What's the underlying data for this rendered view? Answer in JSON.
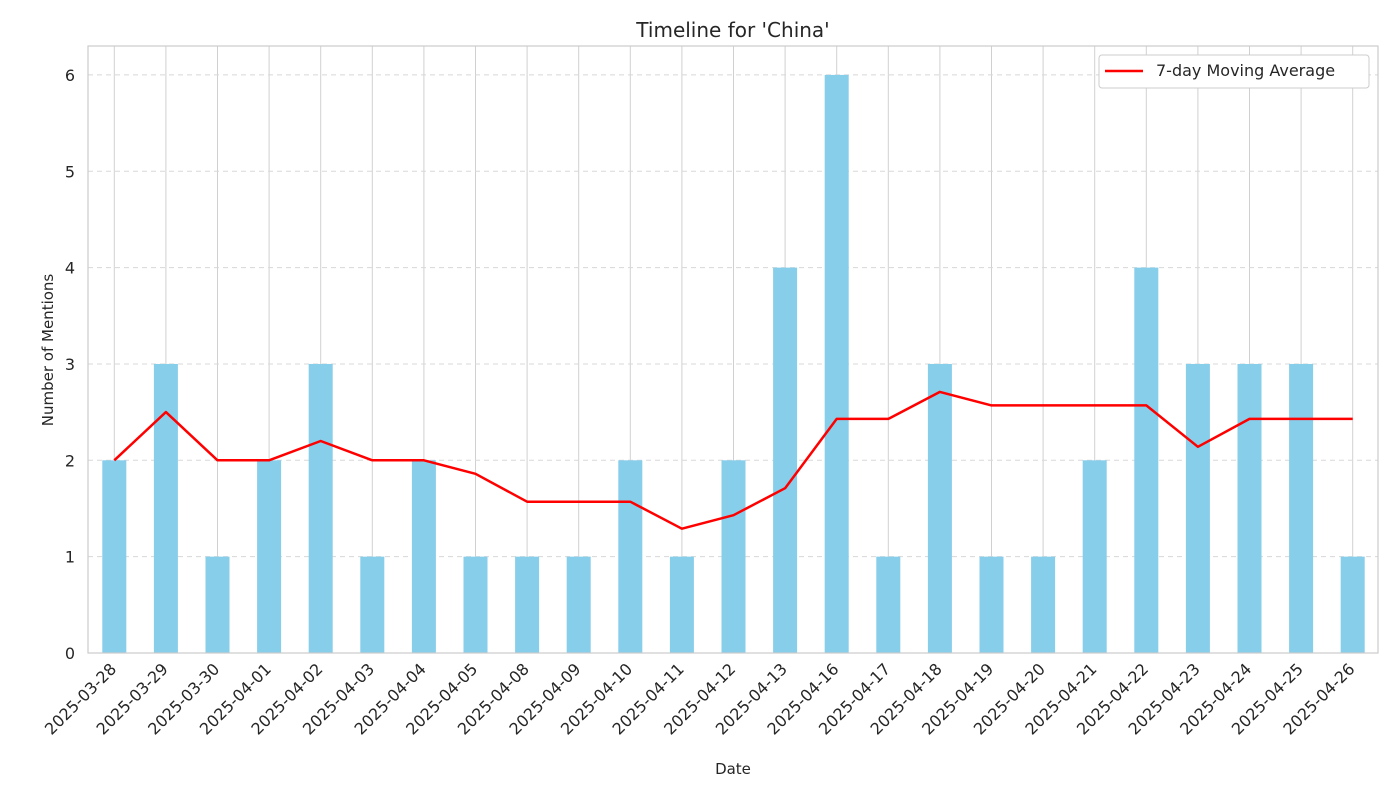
{
  "chart_data": {
    "type": "bar",
    "title": "Timeline for 'China'",
    "xlabel": "Date",
    "ylabel": "Number of Mentions",
    "ylim": [
      0,
      6.3
    ],
    "yticks": [
      0,
      1,
      2,
      3,
      4,
      5,
      6
    ],
    "grid": true,
    "legend_position": "top-right",
    "categories": [
      "2025-03-28",
      "2025-03-29",
      "2025-03-30",
      "2025-04-01",
      "2025-04-02",
      "2025-04-03",
      "2025-04-04",
      "2025-04-05",
      "2025-04-08",
      "2025-04-09",
      "2025-04-10",
      "2025-04-11",
      "2025-04-12",
      "2025-04-13",
      "2025-04-16",
      "2025-04-17",
      "2025-04-18",
      "2025-04-19",
      "2025-04-20",
      "2025-04-21",
      "2025-04-22",
      "2025-04-23",
      "2025-04-24",
      "2025-04-25",
      "2025-04-26"
    ],
    "series": [
      {
        "kind": "bar",
        "color": "#87ceeb",
        "values": [
          2,
          3,
          1,
          2,
          3,
          1,
          2,
          1,
          1,
          1,
          2,
          1,
          2,
          4,
          6,
          1,
          3,
          1,
          1,
          2,
          4,
          3,
          3,
          3,
          1
        ]
      },
      {
        "kind": "line",
        "name": "7-day Moving Average",
        "color": "#ff0000",
        "values": [
          2.0,
          2.5,
          2.0,
          2.0,
          2.2,
          2.0,
          2.0,
          1.86,
          1.57,
          1.57,
          1.57,
          1.29,
          1.43,
          1.71,
          2.43,
          2.43,
          2.71,
          2.57,
          2.57,
          2.57,
          2.57,
          2.14,
          2.43,
          2.43,
          2.43
        ]
      }
    ]
  }
}
